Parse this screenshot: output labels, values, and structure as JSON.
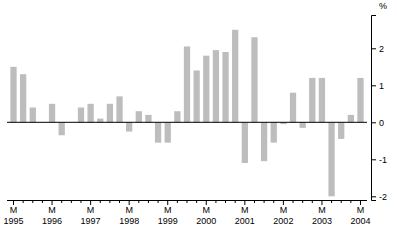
{
  "chart_data": {
    "type": "bar",
    "y_label": "%",
    "categories": [
      "M 1995",
      null,
      null,
      null,
      "M 1996",
      null,
      null,
      null,
      "M 1997",
      null,
      null,
      null,
      "M 1998",
      null,
      null,
      null,
      "M 1999",
      null,
      null,
      null,
      "M 2000",
      null,
      null,
      null,
      "M 2001",
      null,
      null,
      null,
      "M 2002",
      null,
      null,
      null,
      "M 2003",
      null,
      null,
      null,
      "M 2004"
    ],
    "values": [
      1.5,
      1.3,
      0.4,
      0.0,
      0.5,
      -0.35,
      0.0,
      0.4,
      0.5,
      0.1,
      0.5,
      0.7,
      -0.25,
      0.3,
      0.2,
      -0.55,
      -0.55,
      0.3,
      2.05,
      1.4,
      1.8,
      1.95,
      1.9,
      2.5,
      -1.1,
      2.3,
      -1.05,
      -0.55,
      -0.05,
      0.8,
      -0.15,
      1.2,
      1.2,
      -2.0,
      -0.45,
      0.2,
      1.2
    ],
    "color": "#bdbdbd",
    "ylim": [
      -2.1,
      2.9
    ],
    "yticks": [
      -2,
      -1,
      0,
      1,
      2
    ],
    "grid": false
  }
}
